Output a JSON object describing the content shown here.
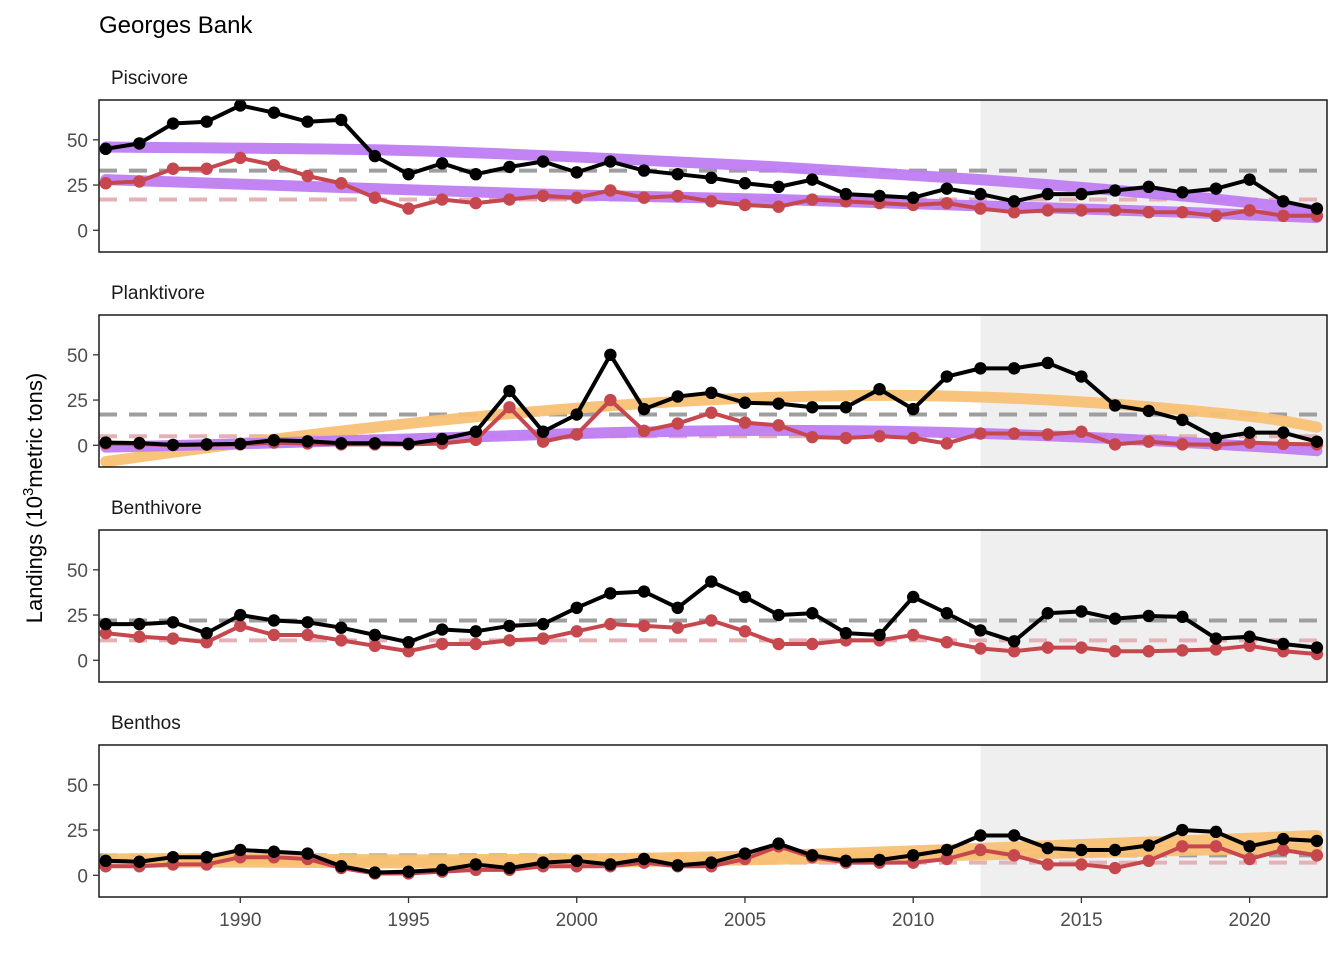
{
  "chart_data": {
    "type": "line",
    "title": "Georges Bank",
    "ylabel_main": "Landings (10",
    "ylabel_sup": "3",
    "ylabel_tail": "metric tons)",
    "xlim": [
      1985.8,
      2022.3
    ],
    "ylim": [
      -12,
      72
    ],
    "x_ticks": [
      1990,
      1995,
      2000,
      2005,
      2010,
      2015,
      2020
    ],
    "y_ticks": [
      0,
      25,
      50
    ],
    "shade_from": 2012,
    "shade_to": 2022.3,
    "colors": {
      "total": "#000000",
      "managed": "#c7474e",
      "total_mean": "#9e9e9e",
      "managed_mean": "#e3b2b6",
      "decrease_trend": "#bf7cf2",
      "increase_trend": "#f8c073",
      "shade": "#efefef"
    },
    "years": [
      1986,
      1987,
      1988,
      1989,
      1990,
      1991,
      1992,
      1993,
      1994,
      1995,
      1996,
      1997,
      1998,
      1999,
      2000,
      2001,
      2002,
      2003,
      2004,
      2005,
      2006,
      2007,
      2008,
      2009,
      2010,
      2011,
      2012,
      2013,
      2014,
      2015,
      2016,
      2017,
      2018,
      2019,
      2020,
      2021,
      2022
    ],
    "panels": [
      {
        "label": "Piscivore",
        "total": [
          45,
          48,
          59,
          60,
          69,
          65,
          60,
          61,
          41,
          31,
          37,
          31,
          35,
          38,
          32,
          38,
          33,
          31,
          29,
          26,
          24,
          28,
          20,
          19,
          18,
          23,
          20,
          16,
          20,
          20,
          22,
          24,
          21,
          23,
          28,
          16,
          12
        ],
        "managed": [
          26,
          27,
          34,
          34,
          40,
          36,
          30,
          26,
          18,
          12,
          17,
          15,
          17,
          19,
          18,
          22,
          18,
          19,
          16,
          14,
          13,
          17,
          16,
          15,
          14,
          15,
          12,
          10,
          11,
          11,
          11,
          10,
          10,
          8,
          11,
          8,
          8
        ],
        "total_mean": 33,
        "managed_mean": 17,
        "trends": [
          {
            "color": "decrease_trend",
            "points": [
              [
                1986,
                46
              ],
              [
                1994,
                44.5
              ],
              [
                2000,
                40.5
              ],
              [
                2006,
                35
              ],
              [
                2012,
                28
              ],
              [
                2018,
                19
              ],
              [
                2022,
                11
              ]
            ]
          },
          {
            "color": "decrease_trend",
            "points": [
              [
                1986,
                28
              ],
              [
                1994,
                23
              ],
              [
                2000,
                19.5
              ],
              [
                2006,
                17
              ],
              [
                2012,
                13.5
              ],
              [
                2018,
                10
              ],
              [
                2022,
                7
              ]
            ]
          }
        ]
      },
      {
        "label": "Planktivore",
        "total": [
          1.5,
          1.2,
          0.2,
          0.5,
          0.8,
          2.8,
          2.2,
          1.1,
          1.1,
          0.8,
          3.5,
          7.5,
          30,
          7.5,
          17,
          50,
          20,
          27,
          29,
          23.5,
          23,
          21,
          21,
          31,
          20,
          38,
          42.5,
          42.5,
          45.5,
          38,
          22,
          19,
          14,
          4,
          7,
          7,
          2
        ],
        "managed": [
          1,
          0.8,
          0.1,
          0.3,
          0.5,
          1.5,
          1,
          0.5,
          0.5,
          0.5,
          1,
          3,
          21,
          2,
          6,
          25,
          8,
          12,
          18,
          12.5,
          11,
          4.5,
          4,
          5,
          4,
          1,
          6.5,
          6.5,
          6,
          7.5,
          0.5,
          2,
          0.5,
          0.3,
          1.5,
          0.8,
          0.5
        ],
        "total_mean": 17,
        "managed_mean": 5,
        "trends": [
          {
            "color": "increase_trend",
            "points": [
              [
                1986,
                -9
              ],
              [
                1990,
                1
              ],
              [
                1995,
                12
              ],
              [
                2000,
                20.5
              ],
              [
                2005,
                26
              ],
              [
                2010,
                27.5
              ],
              [
                2015,
                24
              ],
              [
                2020,
                16
              ],
              [
                2022,
                10
              ]
            ]
          },
          {
            "color": "decrease_trend",
            "points": [
              [
                1986,
                -1
              ],
              [
                1990,
                0.8
              ],
              [
                1995,
                3.5
              ],
              [
                2000,
                6.5
              ],
              [
                2005,
                8.2
              ],
              [
                2010,
                7.5
              ],
              [
                2015,
                4.5
              ],
              [
                2020,
                -0.5
              ],
              [
                2022,
                -3
              ]
            ]
          }
        ]
      },
      {
        "label": "Benthivore",
        "total": [
          20,
          20,
          21,
          15,
          25,
          22,
          21,
          18,
          14,
          10,
          17,
          16,
          19,
          20,
          29,
          37,
          38,
          29,
          43.5,
          35,
          25,
          26,
          15,
          14,
          35,
          26,
          16.5,
          10.5,
          26,
          27,
          23,
          24.5,
          24,
          12,
          13,
          9,
          7
        ],
        "managed": [
          15,
          13,
          12,
          10,
          19,
          14,
          14,
          11,
          8,
          5,
          9,
          9,
          11,
          12,
          16,
          20,
          19,
          18,
          22,
          16,
          9,
          9,
          11,
          11,
          14,
          10,
          6.5,
          5,
          7,
          7,
          5,
          5,
          5.5,
          6,
          8,
          5,
          3.5
        ],
        "total_mean": 22,
        "managed_mean": 11,
        "trends": []
      },
      {
        "label": "Benthos",
        "total": [
          8,
          7.5,
          10,
          10,
          14,
          13,
          12,
          5,
          1.5,
          2,
          3,
          6,
          4,
          7,
          8,
          6,
          9,
          5.5,
          7,
          12,
          17.5,
          11,
          8,
          8.5,
          11,
          14,
          22,
          22,
          15,
          14,
          14,
          16.5,
          25,
          24,
          16,
          20,
          19
        ],
        "managed": [
          5,
          5,
          6,
          6,
          10,
          10,
          9,
          4,
          1,
          1,
          2,
          3,
          3,
          5,
          5,
          5,
          7,
          5,
          5,
          9,
          16,
          10,
          7,
          7,
          7,
          9,
          14,
          11,
          6,
          6,
          4,
          8,
          16,
          16,
          9,
          14,
          11
        ],
        "total_mean": 11,
        "managed_mean": 7,
        "trends": [
          {
            "color": "increase_trend",
            "points": [
              [
                1986,
                9
              ],
              [
                1990,
                9.2
              ],
              [
                1995,
                8.5
              ],
              [
                2000,
                9
              ],
              [
                2005,
                10.5
              ],
              [
                2010,
                13.5
              ],
              [
                2015,
                17
              ],
              [
                2020,
                20.5
              ],
              [
                2022,
                22
              ]
            ]
          },
          {
            "color": "increase_trend",
            "points": [
              [
                1986,
                7
              ],
              [
                1990,
                7.3
              ],
              [
                1995,
                6.8
              ],
              [
                2000,
                7
              ],
              [
                2005,
                8.5
              ],
              [
                2010,
                10.5
              ],
              [
                2015,
                12.5
              ],
              [
                2020,
                14.5
              ],
              [
                2022,
                15.5
              ]
            ]
          }
        ]
      }
    ]
  }
}
